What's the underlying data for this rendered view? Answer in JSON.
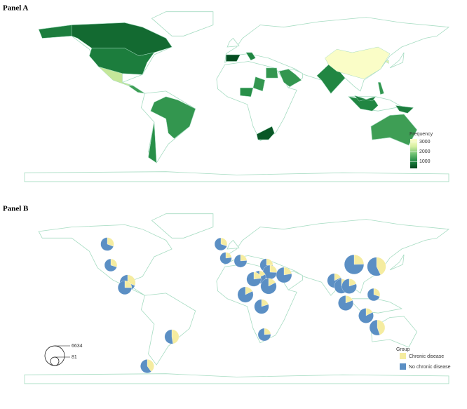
{
  "chart_data": [
    {
      "type": "choropleth",
      "label": "Panel A",
      "legend_title": "Frequency",
      "values": [
        700,
        900,
        900,
        2400,
        1300,
        1200,
        1100,
        400,
        1000,
        1100,
        1200,
        1200,
        1200,
        500,
        1000,
        3200,
        2700,
        1200,
        1000,
        900,
        900,
        1300
      ],
      "lim": [
        300,
        3300
      ],
      "ticks": [
        1000,
        2000,
        3000
      ],
      "colors": [
        "#00441b",
        "#238b45",
        "#74c476",
        "#d9f0a3",
        "#ffffcc"
      ]
    },
    {
      "type": "pie",
      "label": "Panel B",
      "legend_title": "Group",
      "series": [
        {
          "name": "Chronic disease",
          "color": "#f5eca0",
          "values": [
            400,
            300,
            900,
            400,
            900,
            600,
            300,
            150,
            250,
            300,
            450,
            200,
            500,
            450,
            500,
            600,
            400,
            250,
            1600,
            2400,
            350,
            300,
            450,
            300,
            450,
            400,
            1200
          ]
        },
        {
          "name": "No chronic disease",
          "color": "#5b8fc4",
          "values": [
            900,
            700,
            2000,
            1200,
            1000,
            900,
            700,
            500,
            800,
            900,
            1300,
            900,
            2300,
            1500,
            2400,
            2100,
            1600,
            800,
            4900,
            3200,
            1600,
            1700,
            1800,
            700,
            1900,
            1900,
            1500
          ]
        }
      ],
      "size_legend": [
        6634,
        81
      ]
    }
  ]
}
